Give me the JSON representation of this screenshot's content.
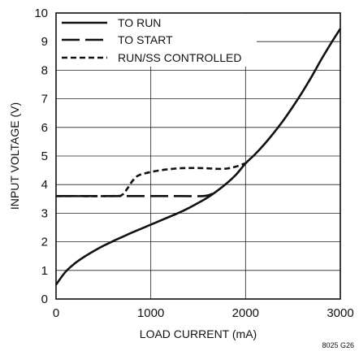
{
  "chart_data": {
    "type": "line",
    "xlabel": "LOAD CURRENT (mA)",
    "ylabel": "INPUT VOLTAGE (V)",
    "xlim": [
      0,
      3000
    ],
    "ylim": [
      0,
      10
    ],
    "x_ticks": [
      "0",
      "1000",
      "2000",
      "3000"
    ],
    "y_ticks": [
      "0",
      "1",
      "2",
      "3",
      "4",
      "5",
      "6",
      "7",
      "8",
      "9",
      "10"
    ],
    "grid": true,
    "legend_placement": "top-left",
    "figure_id": "8025 G26",
    "series": [
      {
        "name": "TO RUN",
        "style": "solid",
        "points": [
          [
            0,
            0.5
          ],
          [
            100,
            0.95
          ],
          [
            200,
            1.25
          ],
          [
            300,
            1.48
          ],
          [
            400,
            1.68
          ],
          [
            500,
            1.86
          ],
          [
            600,
            2.02
          ],
          [
            700,
            2.17
          ],
          [
            800,
            2.32
          ],
          [
            900,
            2.46
          ],
          [
            1000,
            2.6
          ],
          [
            1100,
            2.74
          ],
          [
            1200,
            2.88
          ],
          [
            1300,
            3.02
          ],
          [
            1400,
            3.18
          ],
          [
            1500,
            3.36
          ],
          [
            1600,
            3.55
          ],
          [
            1700,
            3.78
          ],
          [
            1800,
            4.04
          ],
          [
            1900,
            4.35
          ],
          [
            2000,
            4.74
          ],
          [
            2100,
            5.06
          ],
          [
            2200,
            5.42
          ],
          [
            2300,
            5.82
          ],
          [
            2400,
            6.25
          ],
          [
            2500,
            6.73
          ],
          [
            2600,
            7.24
          ],
          [
            2700,
            7.79
          ],
          [
            2800,
            8.38
          ],
          [
            2900,
            8.93
          ],
          [
            3000,
            9.45
          ]
        ]
      },
      {
        "name": "TO START",
        "style": "long-dash",
        "points": [
          [
            0,
            3.6
          ],
          [
            400,
            3.6
          ],
          [
            800,
            3.6
          ],
          [
            1200,
            3.6
          ],
          [
            1550,
            3.6
          ],
          [
            1650,
            3.68
          ]
        ]
      },
      {
        "name": "RUN/SS CONTROLLED",
        "style": "short-dash",
        "points": [
          [
            0,
            3.6
          ],
          [
            600,
            3.6
          ],
          [
            700,
            3.65
          ],
          [
            750,
            3.85
          ],
          [
            800,
            4.1
          ],
          [
            850,
            4.28
          ],
          [
            900,
            4.36
          ],
          [
            1000,
            4.44
          ],
          [
            1100,
            4.5
          ],
          [
            1200,
            4.54
          ],
          [
            1300,
            4.57
          ],
          [
            1400,
            4.58
          ],
          [
            1500,
            4.58
          ],
          [
            1600,
            4.57
          ],
          [
            1700,
            4.55
          ],
          [
            1800,
            4.56
          ],
          [
            1900,
            4.63
          ],
          [
            2000,
            4.75
          ]
        ]
      }
    ]
  }
}
